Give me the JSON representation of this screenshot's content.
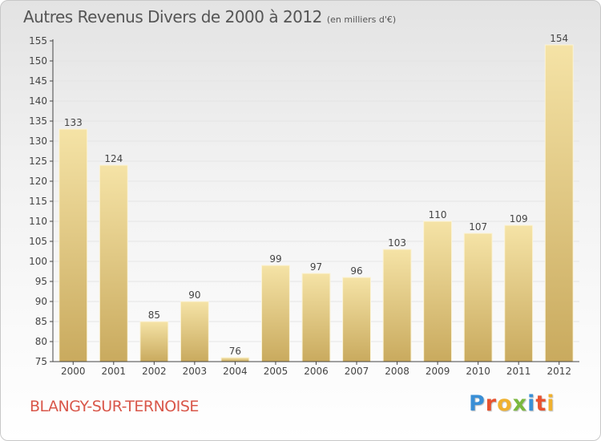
{
  "title": "Autres Revenus Divers de 2000 à 2012",
  "subtitle": "(en milliers d'€)",
  "commune": "BLANGY-SUR-TERNOISE",
  "brand": {
    "letters": [
      "P",
      "r",
      "o",
      "x",
      "i",
      "t",
      "i"
    ],
    "colors": [
      "#3a8fd6",
      "#e8522f",
      "#f0b12e",
      "#7ab83e",
      "#3a8fd6",
      "#e8522f",
      "#f0b12e"
    ]
  },
  "colors": {
    "bar_top": "#f5e3a6",
    "bar_bottom": "#c9aa5e",
    "axis": "#444444",
    "grid": "#e5e5e5"
  },
  "chart_data": {
    "type": "bar",
    "title": "Autres Revenus Divers de 2000 à 2012",
    "subtitle": "(en milliers d'€)",
    "categories": [
      "2000",
      "2001",
      "2002",
      "2003",
      "2004",
      "2005",
      "2006",
      "2007",
      "2008",
      "2009",
      "2010",
      "2011",
      "2012"
    ],
    "values": [
      133,
      124,
      85,
      90,
      76,
      99,
      97,
      96,
      103,
      110,
      107,
      109,
      154
    ],
    "ylim": [
      75,
      155
    ],
    "yticks": [
      75,
      80,
      85,
      90,
      95,
      100,
      105,
      110,
      115,
      120,
      125,
      130,
      135,
      140,
      145,
      150,
      155
    ],
    "grid": true,
    "legend": "none"
  }
}
